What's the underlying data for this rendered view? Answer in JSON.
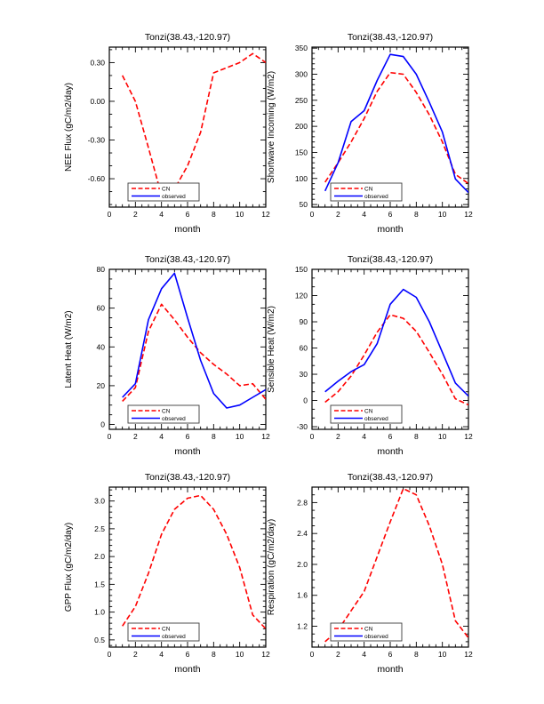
{
  "colors": {
    "cn": "#ff0000",
    "observed": "#0000ff",
    "frame": "#000000",
    "text": "#000000",
    "legend_border": "#3a3a3a"
  },
  "legend": {
    "entries": [
      {
        "label": "CN",
        "series": "cn",
        "dashed": true
      },
      {
        "label": "observed",
        "series": "observed",
        "dashed": false
      }
    ]
  },
  "chart_data": [
    {
      "type": "line",
      "title": "Tonzi(38.43,-120.97)",
      "xlabel": "month",
      "ylabel": "NEE Flux (gC/m2/day)",
      "xlim": [
        0,
        12
      ],
      "ylim": [
        -0.82,
        0.42
      ],
      "xticks": {
        "major": [
          0,
          2,
          4,
          6,
          8,
          10,
          12
        ],
        "minor_step": 0.5
      },
      "yticks": {
        "major": [
          {
            "v": 0.3,
            "label": "0.30"
          },
          {
            "v": 0.0,
            "label": "0.00"
          },
          {
            "v": -0.3,
            "label": "-0.30"
          },
          {
            "v": -0.6,
            "label": "-0.60"
          }
        ],
        "minor_step": 0.1
      },
      "x": [
        1,
        2,
        3,
        4,
        5,
        6,
        7,
        8,
        9,
        10,
        11,
        12
      ],
      "series": [
        {
          "name": "CN",
          "color_key": "cn",
          "dashed": true,
          "values": [
            0.2,
            0.0,
            -0.36,
            -0.73,
            -0.68,
            -0.5,
            -0.24,
            0.22,
            0.26,
            0.3,
            0.37,
            0.3
          ]
        },
        {
          "name": "observed",
          "color_key": "observed",
          "dashed": false,
          "values": []
        }
      ]
    },
    {
      "type": "line",
      "title": "Tonzi(38.43,-120.97)",
      "xlabel": "month",
      "ylabel": "Shortwave Incoming (W/m2)",
      "xlim": [
        0,
        12
      ],
      "ylim": [
        45,
        352
      ],
      "xticks": {
        "major": [
          0,
          2,
          4,
          6,
          8,
          10,
          12
        ],
        "minor_step": 0.5
      },
      "yticks": {
        "major": [
          {
            "v": 50,
            "label": "50"
          },
          {
            "v": 100,
            "label": "100"
          },
          {
            "v": 150,
            "label": "150"
          },
          {
            "v": 200,
            "label": "200"
          },
          {
            "v": 250,
            "label": "250"
          },
          {
            "v": 300,
            "label": "300"
          },
          {
            "v": 350,
            "label": "350"
          }
        ],
        "minor_step": 10
      },
      "x": [
        1,
        2,
        3,
        4,
        5,
        6,
        7,
        8,
        9,
        10,
        11,
        12
      ],
      "series": [
        {
          "name": "CN",
          "color_key": "cn",
          "dashed": true,
          "values": [
            93,
            130,
            170,
            215,
            267,
            303,
            300,
            265,
            222,
            170,
            108,
            90
          ]
        },
        {
          "name": "observed",
          "color_key": "observed",
          "dashed": false,
          "values": [
            76,
            130,
            209,
            230,
            288,
            338,
            334,
            300,
            246,
            189,
            99,
            73
          ]
        }
      ]
    },
    {
      "type": "line",
      "title": "Tonzi(38.43,-120.97)",
      "xlabel": "month",
      "ylabel": "Latent Heat (W/m2)",
      "xlim": [
        0,
        12
      ],
      "ylim": [
        -2.5,
        80
      ],
      "xticks": {
        "major": [
          0,
          2,
          4,
          6,
          8,
          10,
          12
        ],
        "minor_step": 0.5
      },
      "yticks": {
        "major": [
          {
            "v": 0,
            "label": "0"
          },
          {
            "v": 20,
            "label": "20"
          },
          {
            "v": 40,
            "label": "40"
          },
          {
            "v": 60,
            "label": "60"
          },
          {
            "v": 80,
            "label": "80"
          }
        ],
        "minor_step": 5
      },
      "x": [
        1,
        2,
        3,
        4,
        5,
        6,
        7,
        8,
        9,
        10,
        11,
        12
      ],
      "series": [
        {
          "name": "CN",
          "color_key": "cn",
          "dashed": true,
          "values": [
            12,
            19,
            48,
            62,
            54,
            45,
            37,
            31,
            26,
            20,
            21,
            13
          ]
        },
        {
          "name": "observed",
          "color_key": "observed",
          "dashed": false,
          "values": [
            14,
            21,
            54,
            70,
            78,
            55,
            33,
            16,
            8.5,
            10,
            14,
            18
          ]
        }
      ]
    },
    {
      "type": "line",
      "title": "Tonzi(38.43,-120.97)",
      "xlabel": "month",
      "ylabel": "Sensible Heat (W/m2)",
      "xlim": [
        0,
        12
      ],
      "ylim": [
        -33,
        150
      ],
      "xticks": {
        "major": [
          0,
          2,
          4,
          6,
          8,
          10,
          12
        ],
        "minor_step": 0.5
      },
      "yticks": {
        "major": [
          {
            "v": -30,
            "label": "-30"
          },
          {
            "v": 0,
            "label": "0"
          },
          {
            "v": 30,
            "label": "30"
          },
          {
            "v": 60,
            "label": "60"
          },
          {
            "v": 90,
            "label": "90"
          },
          {
            "v": 120,
            "label": "120"
          },
          {
            "v": 150,
            "label": "150"
          }
        ],
        "minor_step": 10
      },
      "x": [
        1,
        2,
        3,
        4,
        5,
        6,
        7,
        8,
        9,
        10,
        11,
        12
      ],
      "series": [
        {
          "name": "CN",
          "color_key": "cn",
          "dashed": true,
          "values": [
            -2,
            10,
            28,
            52,
            78,
            98,
            94,
            79,
            55,
            30,
            2,
            -5
          ]
        },
        {
          "name": "observed",
          "color_key": "observed",
          "dashed": false,
          "values": [
            10,
            22,
            33,
            41,
            65,
            110,
            127,
            118,
            90,
            55,
            20,
            5
          ]
        }
      ]
    },
    {
      "type": "line",
      "title": "Tonzi(38.43,-120.97)",
      "xlabel": "month",
      "ylabel": "GPP Flux (gC/m2/day)",
      "xlim": [
        0,
        12
      ],
      "ylim": [
        0.37,
        3.25
      ],
      "xticks": {
        "major": [
          0,
          2,
          4,
          6,
          8,
          10,
          12
        ],
        "minor_step": 0.5
      },
      "yticks": {
        "major": [
          {
            "v": 0.5,
            "label": "0.5"
          },
          {
            "v": 1.0,
            "label": "1.0"
          },
          {
            "v": 1.5,
            "label": "1.5"
          },
          {
            "v": 2.0,
            "label": "2.0"
          },
          {
            "v": 2.5,
            "label": "2.5"
          },
          {
            "v": 3.0,
            "label": "3.0"
          }
        ],
        "minor_step": 0.1
      },
      "x": [
        1,
        2,
        3,
        4,
        5,
        6,
        7,
        8,
        9,
        10,
        11,
        12
      ],
      "series": [
        {
          "name": "CN",
          "color_key": "cn",
          "dashed": true,
          "values": [
            0.75,
            1.1,
            1.7,
            2.4,
            2.85,
            3.05,
            3.1,
            2.85,
            2.4,
            1.8,
            0.95,
            0.7
          ]
        },
        {
          "name": "observed",
          "color_key": "observed",
          "dashed": false,
          "values": []
        }
      ]
    },
    {
      "type": "line",
      "title": "Tonzi(38.43,-120.97)",
      "xlabel": "month",
      "ylabel": "Respiration (gC/m2/day)",
      "xlim": [
        0,
        12
      ],
      "ylim": [
        0.93,
        3.0
      ],
      "xticks": {
        "major": [
          0,
          2,
          4,
          6,
          8,
          10,
          12
        ],
        "minor_step": 0.5
      },
      "yticks": {
        "major": [
          {
            "v": 1.2,
            "label": "1.2"
          },
          {
            "v": 1.6,
            "label": "1.6"
          },
          {
            "v": 2.0,
            "label": "2.0"
          },
          {
            "v": 2.4,
            "label": "2.4"
          },
          {
            "v": 2.8,
            "label": "2.8"
          }
        ],
        "minor_step": 0.1
      },
      "x": [
        1,
        2,
        3,
        4,
        5,
        6,
        7,
        8,
        9,
        10,
        11,
        12
      ],
      "series": [
        {
          "name": "CN",
          "color_key": "cn",
          "dashed": true,
          "values": [
            1.0,
            1.15,
            1.4,
            1.65,
            2.1,
            2.55,
            2.98,
            2.9,
            2.5,
            2.0,
            1.27,
            1.05
          ]
        },
        {
          "name": "observed",
          "color_key": "observed",
          "dashed": false,
          "values": []
        }
      ]
    }
  ]
}
